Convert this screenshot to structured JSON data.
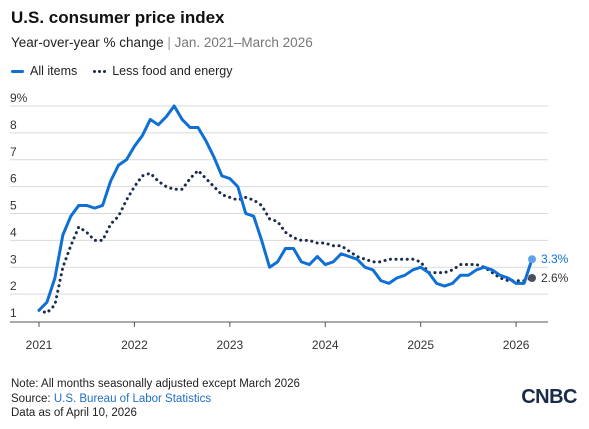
{
  "title": "U.S. consumer price index",
  "subtitle_main": "Year-over-year % change",
  "subtitle_sep": " | ",
  "subtitle_range": "Jan. 2021–March 2026",
  "footer": {
    "note": "Note: All months seasonally adjusted except March 2026",
    "source_prefix": "Source: ",
    "source_link": "U.S. Bureau of Labor Statistics",
    "asof": "Data as of April 10, 2026"
  },
  "logo": "CNBC",
  "colors": {
    "all_items": "#0f6fd4",
    "core": "#1a2b4d",
    "grid": "#d9d9d9"
  },
  "chart_data": {
    "type": "line",
    "xlabel": "",
    "ylabel": "",
    "ylim": [
      1,
      9
    ],
    "yticks": [
      "1",
      "2",
      "3",
      "4",
      "5",
      "6",
      "7",
      "8",
      "9%"
    ],
    "xticks": [
      "2021",
      "2022",
      "2023",
      "2024",
      "2025",
      "2026"
    ],
    "grid": true,
    "legend": "top-left",
    "series": [
      {
        "name": "All items",
        "start": "2021-01",
        "values": [
          1.4,
          1.7,
          2.6,
          4.2,
          4.9,
          5.3,
          5.3,
          5.2,
          5.3,
          6.2,
          6.8,
          7.0,
          7.5,
          7.9,
          8.5,
          8.3,
          8.6,
          9.0,
          8.5,
          8.2,
          8.2,
          7.7,
          7.1,
          6.4,
          6.3,
          6.0,
          5.0,
          4.9,
          4.0,
          3.0,
          3.2,
          3.7,
          3.7,
          3.2,
          3.1,
          3.4,
          3.1,
          3.2,
          3.5,
          3.4,
          3.3,
          3.0,
          2.9,
          2.5,
          2.4,
          2.6,
          2.7,
          2.9,
          3.0,
          2.8,
          2.4,
          2.3,
          2.4,
          2.7,
          2.7,
          2.9,
          3.0,
          2.9,
          2.7,
          2.6,
          2.4,
          2.4,
          3.3
        ]
      },
      {
        "name": "Less food and energy",
        "start": "2021-01",
        "values": [
          1.4,
          1.3,
          1.6,
          3.0,
          3.8,
          4.5,
          4.3,
          4.0,
          4.0,
          4.6,
          4.9,
          5.5,
          6.0,
          6.4,
          6.5,
          6.2,
          6.0,
          5.9,
          5.9,
          6.3,
          6.6,
          6.3,
          6.0,
          5.7,
          5.6,
          5.5,
          5.6,
          5.5,
          5.3,
          4.8,
          4.7,
          4.3,
          4.1,
          4.0,
          4.0,
          3.9,
          3.9,
          3.8,
          3.8,
          3.6,
          3.4,
          3.3,
          3.2,
          3.2,
          3.3,
          3.3,
          3.3,
          3.3,
          3.2,
          2.8,
          2.8,
          2.8,
          2.9,
          3.1,
          3.1,
          3.1,
          3.0,
          2.8,
          2.6,
          2.5,
          2.5,
          2.5,
          2.6
        ]
      }
    ],
    "end_labels": [
      "3.3%",
      "2.6%"
    ]
  }
}
